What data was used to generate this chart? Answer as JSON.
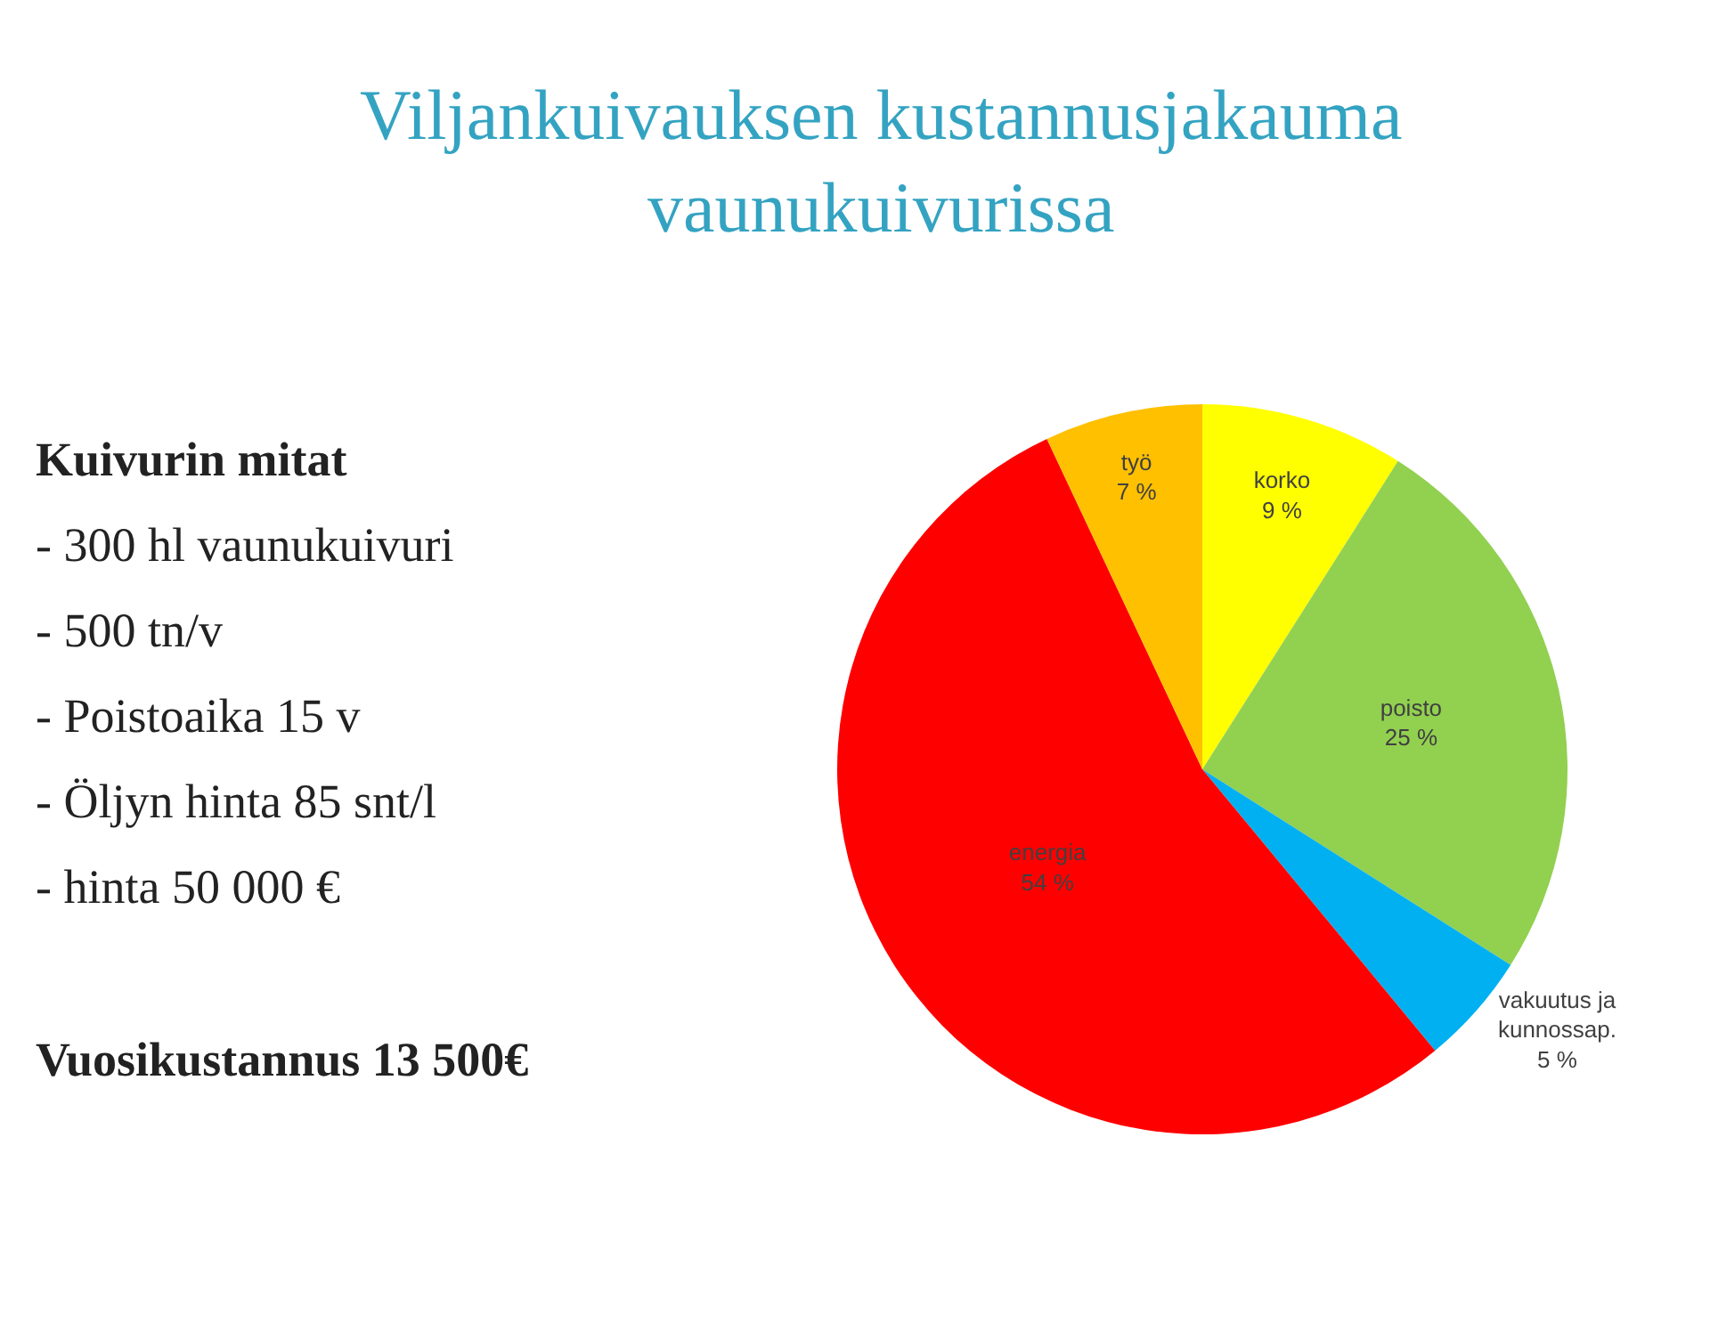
{
  "chart_data": {
    "type": "pie",
    "title": "Viljankuivauksen kustannusjakauma vaunukuivurissa",
    "categories": [
      "korko",
      "poisto",
      "vakuutus ja kunnossap.",
      "energia",
      "työ"
    ],
    "values": [
      9,
      25,
      5,
      54,
      7
    ],
    "value_labels": [
      "9 %",
      "25 %",
      "5 %",
      "54 %",
      "7 %"
    ],
    "colors": [
      "#ffff00",
      "#92d050",
      "#00b0f0",
      "#ff0000",
      "#ffc000"
    ],
    "legend": false,
    "annotations": [
      "Kuivurin mitat",
      "- 300 hl vaunukuivuri",
      "- 500 tn/v",
      "- Poistoaika 15 v",
      "- Öljyn hinta 85 snt/l",
      "- hinta 50 000 €",
      "Vuosikustannus 13 500€"
    ]
  }
}
